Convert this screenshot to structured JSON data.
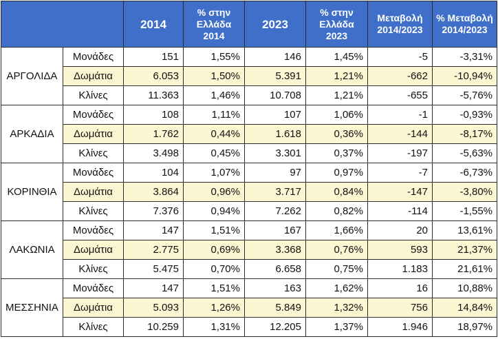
{
  "header": {
    "blank": "",
    "col_2014": "2014",
    "col_share_2014": [
      "% στην",
      "Ελλάδα",
      "2014"
    ],
    "col_2023": "2023",
    "col_share_2023": [
      "% στην",
      "Ελλάδα",
      "2023"
    ],
    "col_change": [
      "Μεταβολή",
      "2014/2023"
    ],
    "col_change_pct": [
      "% Μεταβολή",
      "2014/2023"
    ]
  },
  "regions": [
    {
      "name": "ΑΡΓΟΛΙΔΑ",
      "rows": [
        {
          "metric": "Μονάδες",
          "v2014": "151",
          "p2014": "1,55%",
          "v2023": "146",
          "p2023": "1,45%",
          "change": "-5",
          "change_pct": "-3,31%"
        },
        {
          "metric": "Δωμάτια",
          "v2014": "6.053",
          "p2014": "1,50%",
          "v2023": "5.391",
          "p2023": "1,21%",
          "change": "-662",
          "change_pct": "-10,94%"
        },
        {
          "metric": "Κλίνες",
          "v2014": "11.363",
          "p2014": "1,46%",
          "v2023": "10.708",
          "p2023": "1,21%",
          "change": "-655",
          "change_pct": "-5,76%"
        }
      ]
    },
    {
      "name": "ΑΡΚΑΔΙΑ",
      "rows": [
        {
          "metric": "Μονάδες",
          "v2014": "108",
          "p2014": "1,11%",
          "v2023": "107",
          "p2023": "1,06%",
          "change": "-1",
          "change_pct": "-0,93%"
        },
        {
          "metric": "Δωμάτια",
          "v2014": "1.762",
          "p2014": "0,44%",
          "v2023": "1.618",
          "p2023": "0,36%",
          "change": "-144",
          "change_pct": "-8,17%"
        },
        {
          "metric": "Κλίνες",
          "v2014": "3.498",
          "p2014": "0,45%",
          "v2023": "3.301",
          "p2023": "0,37%",
          "change": "-197",
          "change_pct": "-5,63%"
        }
      ]
    },
    {
      "name": "ΚΟΡΙΝΘΙΑ",
      "rows": [
        {
          "metric": "Μονάδες",
          "v2014": "104",
          "p2014": "1,07%",
          "v2023": "97",
          "p2023": "0,97%",
          "change": "-7",
          "change_pct": "-6,73%"
        },
        {
          "metric": "Δωμάτια",
          "v2014": "3.864",
          "p2014": "0,96%",
          "v2023": "3.717",
          "p2023": "0,84%",
          "change": "-147",
          "change_pct": "-3,80%"
        },
        {
          "metric": "Κλίνες",
          "v2014": "7.376",
          "p2014": "0,94%",
          "v2023": "7.262",
          "p2023": "0,82%",
          "change": "-114",
          "change_pct": "-1,55%"
        }
      ]
    },
    {
      "name": "ΛΑΚΩΝΙΑ",
      "rows": [
        {
          "metric": "Μονάδες",
          "v2014": "147",
          "p2014": "1,51%",
          "v2023": "167",
          "p2023": "1,66%",
          "change": "20",
          "change_pct": "13,61%"
        },
        {
          "metric": "Δωμάτια",
          "v2014": "2.775",
          "p2014": "0,69%",
          "v2023": "3.368",
          "p2023": "0,76%",
          "change": "593",
          "change_pct": "21,37%"
        },
        {
          "metric": "Κλίνες",
          "v2014": "5.475",
          "p2014": "0,70%",
          "v2023": "6.658",
          "p2023": "0,75%",
          "change": "1.183",
          "change_pct": "21,61%"
        }
      ]
    },
    {
      "name": "ΜΕΣΣΗΝΙΑ",
      "rows": [
        {
          "metric": "Μονάδες",
          "v2014": "147",
          "p2014": "1,51%",
          "v2023": "163",
          "p2023": "1,62%",
          "change": "16",
          "change_pct": "10,88%"
        },
        {
          "metric": "Δωμάτια",
          "v2014": "5.093",
          "p2014": "1,26%",
          "v2023": "5.849",
          "p2023": "1,32%",
          "change": "756",
          "change_pct": "14,84%"
        },
        {
          "metric": "Κλίνες",
          "v2014": "10.259",
          "p2014": "1,31%",
          "v2023": "12.205",
          "p2023": "1,37%",
          "change": "1.946",
          "change_pct": "18,97%"
        }
      ]
    }
  ],
  "colors": {
    "header_bg": "#3f6fc9",
    "highlight_row": "#fdf6d3",
    "border": "#2b2b2b"
  }
}
